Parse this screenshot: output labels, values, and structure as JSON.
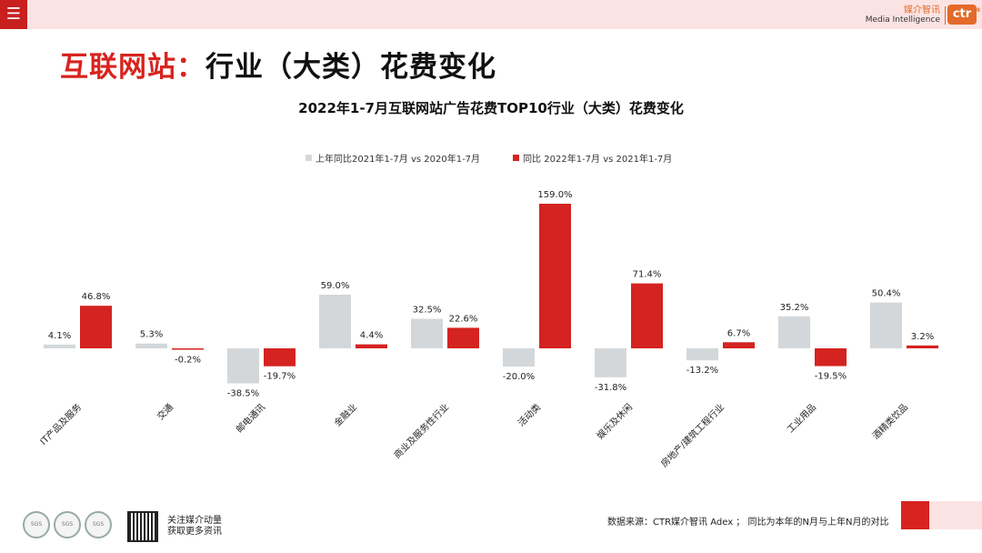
{
  "topbar": {
    "menu_icon": "hamburger-icon",
    "brand_cn": "媒介智讯",
    "brand_en": "Media Intelligence",
    "brand_logo": "ctr",
    "brand_mark": "®"
  },
  "page_title": {
    "part1": "互联网站：",
    "part2": "行业（大类）花费变化"
  },
  "footer": {
    "seal_text": "SGS",
    "follow_line1": "关注媒介动量",
    "follow_line2": "获取更多资讯",
    "source": "数据来源：CTR媒介智讯 Adex ；  同比为本年的N月与上年N月的对比"
  },
  "colors": {
    "accent_red": "#d8231e",
    "bar_red": "#d42320",
    "bar_gray": "#d3d7da",
    "band_pink": "#fbe3e3"
  },
  "chart_data": {
    "type": "bar",
    "title": "2022年1-7月互联网站广告花费TOP10行业（大类）花费变化",
    "categories": [
      "IT产品及服务",
      "交通",
      "邮电通讯",
      "金融业",
      "商业及服务性行业",
      "活动类",
      "娱乐及休闲",
      "房地产/建筑工程行业",
      "工业用品",
      "酒精类饮品"
    ],
    "series": [
      {
        "name": "上年同比2021年1-7月  vs  2020年1-7月",
        "color": "#d3d7da",
        "values": [
          4.1,
          5.3,
          -38.5,
          59.0,
          32.5,
          -20.0,
          -31.8,
          -13.2,
          35.2,
          50.4
        ]
      },
      {
        "name": "同比 2022年1-7月  vs  2021年1-7月",
        "color": "#d42320",
        "values": [
          46.8,
          -0.2,
          -19.7,
          4.4,
          22.6,
          159.0,
          71.4,
          6.7,
          -19.5,
          3.2
        ]
      }
    ],
    "value_format": "percent_1dp",
    "ylim": [
      -45,
      165
    ],
    "legend_position": "top-center",
    "grid": false
  }
}
